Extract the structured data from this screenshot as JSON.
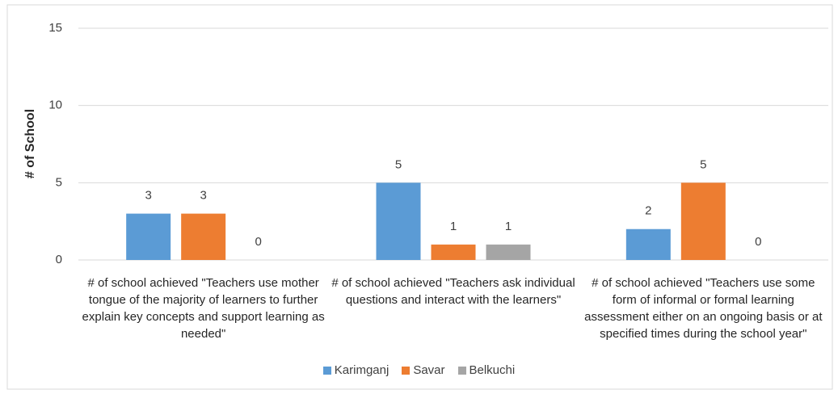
{
  "chart_data": {
    "type": "bar",
    "y_label": "# of School",
    "categories": [
      "# of school achieved \"Teachers use mother tongue of the majority of learners to further explain key concepts and support learning as needed\"",
      "# of school achieved \"Teachers ask individual questions and interact with the learners\"",
      "# of school achieved \"Teachers use some form of informal or formal learning assessment either on an ongoing basis or at specified times during the school year\""
    ],
    "series": [
      {
        "name": "Karimganj",
        "color": "#5b9bd5",
        "values": [
          3,
          5,
          2
        ]
      },
      {
        "name": "Savar",
        "color": "#ed7d31",
        "values": [
          3,
          1,
          5
        ]
      },
      {
        "name": "Belkuchi",
        "color": "#a5a5a5",
        "values": [
          0,
          1,
          0
        ]
      }
    ],
    "ylim": [
      0,
      15
    ],
    "yticks": [
      0,
      5,
      10,
      15
    ],
    "grid": true,
    "legend": "bottom"
  }
}
